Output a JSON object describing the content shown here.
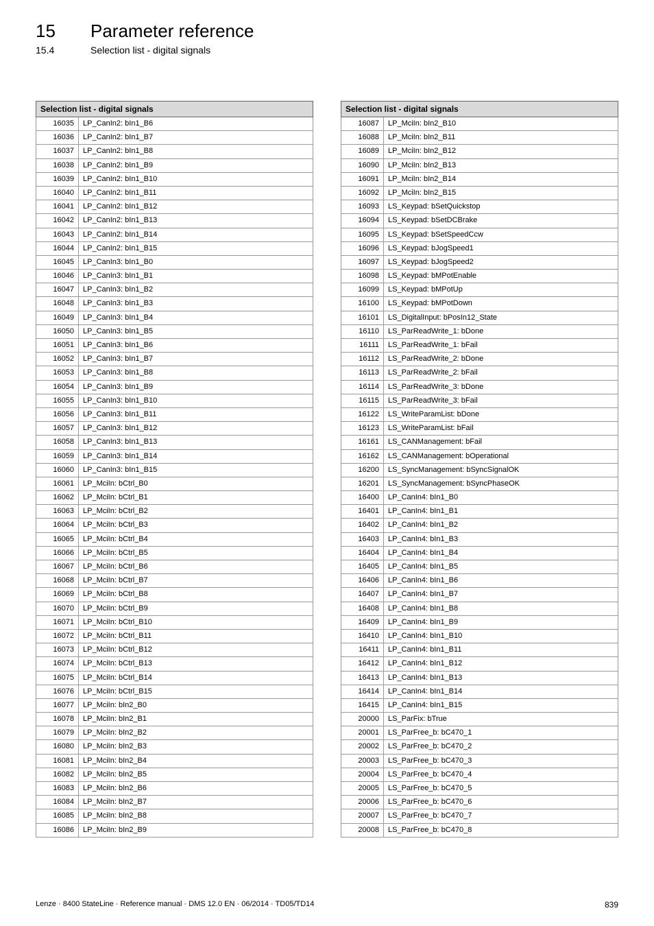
{
  "header": {
    "chapter_number": "15",
    "chapter_title": "Parameter reference",
    "section_number": "15.4",
    "section_title": "Selection list - digital signals"
  },
  "tables": {
    "left": {
      "header": "Selection list - digital signals",
      "rows": [
        {
          "id": "16035",
          "name": "LP_CanIn2: bIn1_B6"
        },
        {
          "id": "16036",
          "name": "LP_CanIn2: bIn1_B7"
        },
        {
          "id": "16037",
          "name": "LP_CanIn2: bIn1_B8"
        },
        {
          "id": "16038",
          "name": "LP_CanIn2: bIn1_B9"
        },
        {
          "id": "16039",
          "name": "LP_CanIn2: bIn1_B10"
        },
        {
          "id": "16040",
          "name": "LP_CanIn2: bIn1_B11"
        },
        {
          "id": "16041",
          "name": "LP_CanIn2: bIn1_B12"
        },
        {
          "id": "16042",
          "name": "LP_CanIn2: bIn1_B13"
        },
        {
          "id": "16043",
          "name": "LP_CanIn2: bIn1_B14"
        },
        {
          "id": "16044",
          "name": "LP_CanIn2: bIn1_B15"
        },
        {
          "id": "16045",
          "name": "LP_CanIn3: bIn1_B0"
        },
        {
          "id": "16046",
          "name": "LP_CanIn3: bIn1_B1"
        },
        {
          "id": "16047",
          "name": "LP_CanIn3: bIn1_B2"
        },
        {
          "id": "16048",
          "name": "LP_CanIn3: bIn1_B3"
        },
        {
          "id": "16049",
          "name": "LP_CanIn3: bIn1_B4"
        },
        {
          "id": "16050",
          "name": "LP_CanIn3: bIn1_B5"
        },
        {
          "id": "16051",
          "name": "LP_CanIn3: bIn1_B6"
        },
        {
          "id": "16052",
          "name": "LP_CanIn3: bIn1_B7"
        },
        {
          "id": "16053",
          "name": "LP_CanIn3: bIn1_B8"
        },
        {
          "id": "16054",
          "name": "LP_CanIn3: bIn1_B9"
        },
        {
          "id": "16055",
          "name": "LP_CanIn3: bIn1_B10"
        },
        {
          "id": "16056",
          "name": "LP_CanIn3: bIn1_B11"
        },
        {
          "id": "16057",
          "name": "LP_CanIn3: bIn1_B12"
        },
        {
          "id": "16058",
          "name": "LP_CanIn3: bIn1_B13"
        },
        {
          "id": "16059",
          "name": "LP_CanIn3: bIn1_B14"
        },
        {
          "id": "16060",
          "name": "LP_CanIn3: bIn1_B15"
        },
        {
          "id": "16061",
          "name": "LP_MciIn: bCtrl_B0"
        },
        {
          "id": "16062",
          "name": "LP_MciIn: bCtrl_B1"
        },
        {
          "id": "16063",
          "name": "LP_MciIn: bCtrl_B2"
        },
        {
          "id": "16064",
          "name": "LP_MciIn: bCtrl_B3"
        },
        {
          "id": "16065",
          "name": "LP_MciIn: bCtrl_B4"
        },
        {
          "id": "16066",
          "name": "LP_MciIn: bCtrl_B5"
        },
        {
          "id": "16067",
          "name": "LP_MciIn: bCtrl_B6"
        },
        {
          "id": "16068",
          "name": "LP_MciIn: bCtrl_B7"
        },
        {
          "id": "16069",
          "name": "LP_MciIn: bCtrl_B8"
        },
        {
          "id": "16070",
          "name": "LP_MciIn: bCtrl_B9"
        },
        {
          "id": "16071",
          "name": "LP_MciIn: bCtrl_B10"
        },
        {
          "id": "16072",
          "name": "LP_MciIn: bCtrl_B11"
        },
        {
          "id": "16073",
          "name": "LP_MciIn: bCtrl_B12"
        },
        {
          "id": "16074",
          "name": "LP_MciIn: bCtrl_B13"
        },
        {
          "id": "16075",
          "name": "LP_MciIn: bCtrl_B14"
        },
        {
          "id": "16076",
          "name": "LP_MciIn: bCtrl_B15"
        },
        {
          "id": "16077",
          "name": "LP_MciIn: bIn2_B0"
        },
        {
          "id": "16078",
          "name": "LP_MciIn: bIn2_B1"
        },
        {
          "id": "16079",
          "name": "LP_MciIn: bIn2_B2"
        },
        {
          "id": "16080",
          "name": "LP_MciIn: bIn2_B3"
        },
        {
          "id": "16081",
          "name": "LP_MciIn: bIn2_B4"
        },
        {
          "id": "16082",
          "name": "LP_MciIn: bIn2_B5"
        },
        {
          "id": "16083",
          "name": "LP_MciIn: bIn2_B6"
        },
        {
          "id": "16084",
          "name": "LP_MciIn: bIn2_B7"
        },
        {
          "id": "16085",
          "name": "LP_MciIn: bIn2_B8"
        },
        {
          "id": "16086",
          "name": "LP_MciIn: bIn2_B9"
        }
      ]
    },
    "right": {
      "header": "Selection list - digital signals",
      "rows": [
        {
          "id": "16087",
          "name": "LP_MciIn: bIn2_B10"
        },
        {
          "id": "16088",
          "name": "LP_MciIn: bIn2_B11"
        },
        {
          "id": "16089",
          "name": "LP_MciIn: bIn2_B12"
        },
        {
          "id": "16090",
          "name": "LP_MciIn: bIn2_B13"
        },
        {
          "id": "16091",
          "name": "LP_MciIn: bIn2_B14"
        },
        {
          "id": "16092",
          "name": "LP_MciIn: bIn2_B15"
        },
        {
          "id": "16093",
          "name": "LS_Keypad: bSetQuickstop"
        },
        {
          "id": "16094",
          "name": "LS_Keypad: bSetDCBrake"
        },
        {
          "id": "16095",
          "name": "LS_Keypad: bSetSpeedCcw"
        },
        {
          "id": "16096",
          "name": "LS_Keypad: bJogSpeed1"
        },
        {
          "id": "16097",
          "name": "LS_Keypad: bJogSpeed2"
        },
        {
          "id": "16098",
          "name": "LS_Keypad: bMPotEnable"
        },
        {
          "id": "16099",
          "name": "LS_Keypad: bMPotUp"
        },
        {
          "id": "16100",
          "name": "LS_Keypad: bMPotDown"
        },
        {
          "id": "16101",
          "name": "LS_DigitalInput: bPosIn12_State"
        },
        {
          "id": "16110",
          "name": "LS_ParReadWrite_1: bDone"
        },
        {
          "id": "16111",
          "name": "LS_ParReadWrite_1: bFail"
        },
        {
          "id": "16112",
          "name": "LS_ParReadWrite_2: bDone"
        },
        {
          "id": "16113",
          "name": "LS_ParReadWrite_2: bFail"
        },
        {
          "id": "16114",
          "name": "LS_ParReadWrite_3: bDone"
        },
        {
          "id": "16115",
          "name": "LS_ParReadWrite_3: bFail"
        },
        {
          "id": "16122",
          "name": "LS_WriteParamList: bDone"
        },
        {
          "id": "16123",
          "name": "LS_WriteParamList: bFail"
        },
        {
          "id": "16161",
          "name": "LS_CANManagement: bFail"
        },
        {
          "id": "16162",
          "name": "LS_CANManagement: bOperational"
        },
        {
          "id": "16200",
          "name": "LS_SyncManagement: bSyncSignalOK"
        },
        {
          "id": "16201",
          "name": "LS_SyncManagement: bSyncPhaseOK"
        },
        {
          "id": "16400",
          "name": "LP_CanIn4: bIn1_B0"
        },
        {
          "id": "16401",
          "name": "LP_CanIn4: bIn1_B1"
        },
        {
          "id": "16402",
          "name": "LP_CanIn4: bIn1_B2"
        },
        {
          "id": "16403",
          "name": "LP_CanIn4: bIn1_B3"
        },
        {
          "id": "16404",
          "name": "LP_CanIn4: bIn1_B4"
        },
        {
          "id": "16405",
          "name": "LP_CanIn4: bIn1_B5"
        },
        {
          "id": "16406",
          "name": "LP_CanIn4: bIn1_B6"
        },
        {
          "id": "16407",
          "name": "LP_CanIn4: bIn1_B7"
        },
        {
          "id": "16408",
          "name": "LP_CanIn4: bIn1_B8"
        },
        {
          "id": "16409",
          "name": "LP_CanIn4: bIn1_B9"
        },
        {
          "id": "16410",
          "name": "LP_CanIn4: bIn1_B10"
        },
        {
          "id": "16411",
          "name": "LP_CanIn4: bIn1_B11"
        },
        {
          "id": "16412",
          "name": "LP_CanIn4: bIn1_B12"
        },
        {
          "id": "16413",
          "name": "LP_CanIn4: bIn1_B13"
        },
        {
          "id": "16414",
          "name": "LP_CanIn4: bIn1_B14"
        },
        {
          "id": "16415",
          "name": "LP_CanIn4: bIn1_B15"
        },
        {
          "id": "20000",
          "name": "LS_ParFix: bTrue"
        },
        {
          "id": "20001",
          "name": "LS_ParFree_b: bC470_1"
        },
        {
          "id": "20002",
          "name": "LS_ParFree_b: bC470_2"
        },
        {
          "id": "20003",
          "name": "LS_ParFree_b: bC470_3"
        },
        {
          "id": "20004",
          "name": "LS_ParFree_b: bC470_4"
        },
        {
          "id": "20005",
          "name": "LS_ParFree_b: bC470_5"
        },
        {
          "id": "20006",
          "name": "LS_ParFree_b: bC470_6"
        },
        {
          "id": "20007",
          "name": "LS_ParFree_b: bC470_7"
        },
        {
          "id": "20008",
          "name": "LS_ParFree_b: bC470_8"
        }
      ]
    }
  },
  "footer": {
    "doc_info": "Lenze · 8400 StateLine · Reference manual · DMS 12.0 EN · 06/2014 · TD05/TD14",
    "page_number": "839"
  },
  "separator": "_ _ _ _ _ _ _ _ _ _ _ _ _ _ _ _ _ _ _ _ _ _ _ _ _ _ _ _ _ _ _ _ _ _ _ _ _ _ _ _ _ _ _ _ _ _ _ _ _ _ _ _ _ _ _ _ _ _ _ _ _ _ _ _ _ _ _ _ _ _ _ _ _ _ _ _ _ _ _ _"
}
